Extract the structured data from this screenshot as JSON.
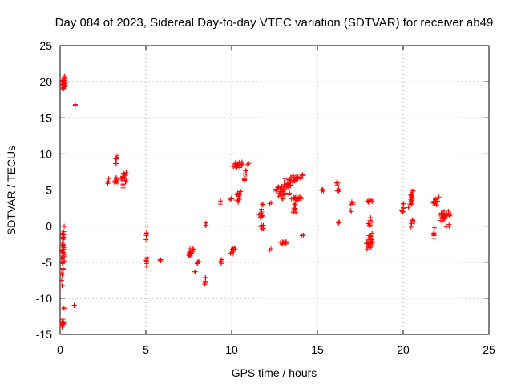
{
  "chart_data": {
    "type": "scatter",
    "title": "Day 084 of 2023, Sidereal Day-to-day VTEC variation (SDTVAR) for receiver ab49",
    "xlabel": "GPS time / hours",
    "ylabel": "SDTVAR / TECUs",
    "xlim": [
      0,
      25
    ],
    "ylim": [
      -15,
      25
    ],
    "x_ticks": [
      0,
      5,
      10,
      15,
      20,
      25
    ],
    "x_tick_labels": [
      "0",
      "5",
      "10",
      "15",
      "20",
      "25"
    ],
    "y_ticks": [
      -15,
      -10,
      -5,
      0,
      5,
      10,
      15,
      20,
      25
    ],
    "y_tick_labels": [
      "-15",
      "-10",
      "-5",
      "0",
      "5",
      "10",
      "15",
      "20",
      "25"
    ],
    "grid": true,
    "marker": "+",
    "color": "#ff0000",
    "clusters": [
      {
        "x": [
          0.05,
          0.35
        ],
        "y": [
          18.5,
          21.0
        ],
        "n": 25
      },
      {
        "x": [
          0.85,
          0.9
        ],
        "y": [
          16.6,
          17.0
        ],
        "n": 3
      },
      {
        "x": [
          0.05,
          0.3
        ],
        "y": [
          -8.5,
          1.0
        ],
        "n": 45
      },
      {
        "x": [
          0.05,
          0.25
        ],
        "y": [
          -14.2,
          -12.8
        ],
        "n": 14
      },
      {
        "x": [
          0.2,
          0.25
        ],
        "y": [
          -11.6,
          -11.2
        ],
        "n": 2
      },
      {
        "x": [
          0.8,
          0.85
        ],
        "y": [
          -11.2,
          -10.9
        ],
        "n": 2
      },
      {
        "x": [
          2.75,
          2.85
        ],
        "y": [
          5.0,
          7.0
        ],
        "n": 4
      },
      {
        "x": [
          3.2,
          3.35
        ],
        "y": [
          8.5,
          10.3
        ],
        "n": 6
      },
      {
        "x": [
          3.1,
          3.4
        ],
        "y": [
          5.8,
          6.8
        ],
        "n": 10
      },
      {
        "x": [
          3.5,
          3.9
        ],
        "y": [
          4.8,
          7.8
        ],
        "n": 20
      },
      {
        "x": [
          5.0,
          5.1
        ],
        "y": [
          -2.0,
          0.3
        ],
        "n": 6
      },
      {
        "x": [
          5.0,
          5.1
        ],
        "y": [
          -6.0,
          -3.5
        ],
        "n": 8
      },
      {
        "x": [
          5.8,
          5.9
        ],
        "y": [
          -5.2,
          -4.4
        ],
        "n": 3
      },
      {
        "x": [
          7.4,
          7.8
        ],
        "y": [
          -4.5,
          -3.0
        ],
        "n": 14
      },
      {
        "x": [
          7.9,
          8.1
        ],
        "y": [
          -5.3,
          -4.7
        ],
        "n": 5
      },
      {
        "x": [
          7.85,
          7.9
        ],
        "y": [
          -6.5,
          -6.1
        ],
        "n": 2
      },
      {
        "x": [
          8.4,
          8.5
        ],
        "y": [
          -8.2,
          -7.0
        ],
        "n": 5
      },
      {
        "x": [
          8.45,
          8.55
        ],
        "y": [
          0.0,
          0.5
        ],
        "n": 3
      },
      {
        "x": [
          9.35,
          9.45
        ],
        "y": [
          -5.5,
          -4.3
        ],
        "n": 4
      },
      {
        "x": [
          9.3,
          9.4
        ],
        "y": [
          3.0,
          4.0
        ],
        "n": 3
      },
      {
        "x": [
          9.9,
          10.3
        ],
        "y": [
          -4.0,
          -2.8
        ],
        "n": 10
      },
      {
        "x": [
          9.9,
          10.1
        ],
        "y": [
          3.5,
          4.3
        ],
        "n": 4
      },
      {
        "x": [
          10.2,
          10.6
        ],
        "y": [
          3.2,
          5.0
        ],
        "n": 14
      },
      {
        "x": [
          10.0,
          10.7
        ],
        "y": [
          7.8,
          9.2
        ],
        "n": 22
      },
      {
        "x": [
          10.6,
          10.9
        ],
        "y": [
          6.0,
          8.0
        ],
        "n": 8
      },
      {
        "x": [
          10.9,
          11.0
        ],
        "y": [
          8.5,
          8.9
        ],
        "n": 2
      },
      {
        "x": [
          11.6,
          11.9
        ],
        "y": [
          1.0,
          3.2
        ],
        "n": 12
      },
      {
        "x": [
          11.7,
          11.9
        ],
        "y": [
          -1.0,
          0.8
        ],
        "n": 7
      },
      {
        "x": [
          12.2,
          12.3
        ],
        "y": [
          3.0,
          3.5
        ],
        "n": 2
      },
      {
        "x": [
          12.2,
          12.3
        ],
        "y": [
          -3.5,
          -3.1
        ],
        "n": 2
      },
      {
        "x": [
          12.5,
          13.5
        ],
        "y": [
          3.5,
          6.5
        ],
        "n": 40
      },
      {
        "x": [
          12.7,
          13.4
        ],
        "y": [
          -2.6,
          -2.0
        ],
        "n": 14
      },
      {
        "x": [
          13.0,
          14.2
        ],
        "y": [
          6.0,
          7.3
        ],
        "n": 26
      },
      {
        "x": [
          13.4,
          14.3
        ],
        "y": [
          3.5,
          4.2
        ],
        "n": 16
      },
      {
        "x": [
          13.5,
          13.9
        ],
        "y": [
          1.5,
          3.2
        ],
        "n": 10
      },
      {
        "x": [
          14.1,
          14.2
        ],
        "y": [
          -1.4,
          -1.0
        ],
        "n": 2
      },
      {
        "x": [
          15.2,
          15.4
        ],
        "y": [
          4.7,
          5.2
        ],
        "n": 5
      },
      {
        "x": [
          16.1,
          16.2
        ],
        "y": [
          5.5,
          6.5
        ],
        "n": 4
      },
      {
        "x": [
          16.1,
          16.3
        ],
        "y": [
          4.5,
          5.3
        ],
        "n": 4
      },
      {
        "x": [
          16.2,
          16.3
        ],
        "y": [
          0.4,
          0.8
        ],
        "n": 3
      },
      {
        "x": [
          16.9,
          17.1
        ],
        "y": [
          2.0,
          4.0
        ],
        "n": 6
      },
      {
        "x": [
          17.9,
          18.3
        ],
        "y": [
          3.2,
          3.7
        ],
        "n": 7
      },
      {
        "x": [
          17.9,
          18.2
        ],
        "y": [
          -0.5,
          1.5
        ],
        "n": 10
      },
      {
        "x": [
          17.8,
          18.3
        ],
        "y": [
          -3.5,
          -0.7
        ],
        "n": 24
      },
      {
        "x": [
          19.9,
          20.1
        ],
        "y": [
          1.5,
          3.3
        ],
        "n": 8
      },
      {
        "x": [
          20.3,
          20.6
        ],
        "y": [
          2.5,
          5.2
        ],
        "n": 18
      },
      {
        "x": [
          20.4,
          20.7
        ],
        "y": [
          -0.3,
          1.0
        ],
        "n": 6
      },
      {
        "x": [
          21.7,
          21.9
        ],
        "y": [
          -1.8,
          -0.2
        ],
        "n": 6
      },
      {
        "x": [
          21.7,
          22.1
        ],
        "y": [
          2.5,
          4.2
        ],
        "n": 14
      },
      {
        "x": [
          22.0,
          22.8
        ],
        "y": [
          0.5,
          2.3
        ],
        "n": 24
      },
      {
        "x": [
          22.5,
          22.8
        ],
        "y": [
          -0.3,
          0.3
        ],
        "n": 4
      }
    ]
  }
}
